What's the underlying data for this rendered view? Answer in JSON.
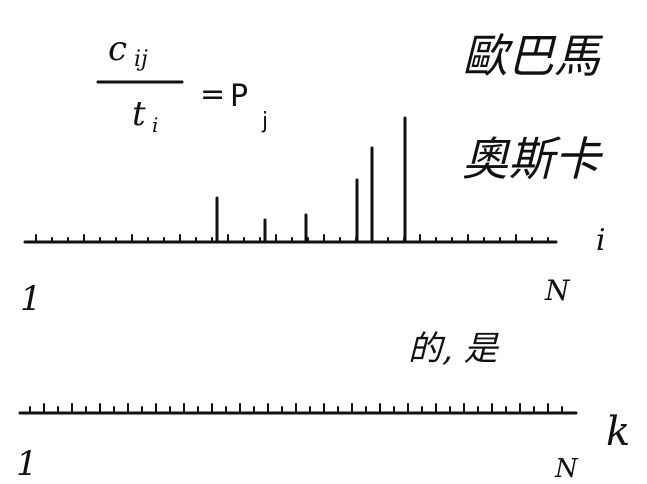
{
  "formula": {
    "numerator": "c",
    "numerator_sub": "ij",
    "denominator": "t",
    "denominator_sub": "i",
    "equals": "=",
    "rhs": "P",
    "rhs_sub": "j"
  },
  "names": [
    "歐巴馬",
    "奧斯卡"
  ],
  "top_axis": {
    "label": "i",
    "start": "1",
    "end": "N"
  },
  "words": "的, 是",
  "bottom_axis": {
    "label": "k",
    "start": "1",
    "end": "N"
  }
}
